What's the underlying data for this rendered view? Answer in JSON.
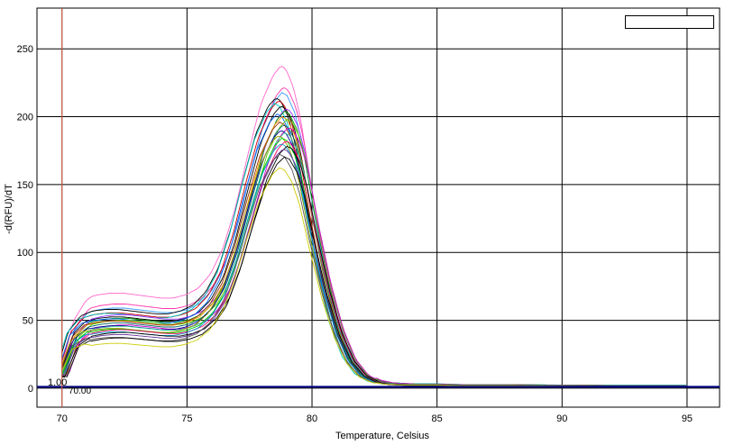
{
  "chart_data": {
    "type": "line",
    "title": "",
    "xlabel": "Temperature, Celsius",
    "ylabel": "-d(RFU)/dT",
    "xlim": [
      69,
      96.3
    ],
    "ylim": [
      -14,
      280
    ],
    "xticks": [
      70,
      75,
      80,
      85,
      90,
      95
    ],
    "yticks": [
      0,
      50,
      100,
      150,
      200,
      250
    ],
    "grid": true,
    "legend": "top-right",
    "threshold": {
      "value": 1.0,
      "label": "1.00",
      "color": "#000080"
    },
    "marker": {
      "x": 70.0,
      "label": "70.00",
      "color": "#e8654a"
    },
    "base_curve": {
      "x": [
        70,
        70.5,
        71,
        71.5,
        72,
        72.5,
        73,
        73.5,
        74,
        74.5,
        75,
        75.5,
        76,
        76.5,
        77,
        77.5,
        78,
        78.5,
        78.8,
        79,
        79.3,
        79.6,
        80,
        80.5,
        81,
        81.5,
        82,
        82.5,
        83,
        84,
        85,
        86,
        88,
        90,
        92,
        94,
        95,
        96
      ],
      "y": [
        10,
        38,
        47,
        49,
        50,
        50,
        49,
        48,
        47,
        47,
        49,
        53,
        62,
        78,
        105,
        140,
        172,
        192,
        198,
        196,
        185,
        165,
        125,
        80,
        45,
        22,
        10,
        5,
        3,
        2,
        2,
        1.5,
        1.5,
        1.2,
        1,
        1,
        1,
        1
      ]
    },
    "series": [
      {
        "color": "#ff66cc",
        "scale": 1.2,
        "shift": -0.05,
        "offset": 10
      },
      {
        "color": "#ff33aa",
        "scale": 1.12,
        "shift": 0.05,
        "offset": 6
      },
      {
        "color": "#3399ff",
        "scale": 1.1,
        "shift": 0.0,
        "offset": 4
      },
      {
        "color": "#000000",
        "scale": 1.08,
        "shift": -0.25,
        "offset": 4
      },
      {
        "color": "#cc0000",
        "scale": 1.07,
        "shift": -0.15,
        "offset": 2
      },
      {
        "color": "#00cccc",
        "scale": 1.06,
        "shift": -0.3,
        "offset": 2
      },
      {
        "color": "#000000",
        "scale": 1.05,
        "shift": -0.05,
        "offset": 0
      },
      {
        "color": "#9933ff",
        "scale": 1.04,
        "shift": 0.15,
        "offset": 2
      },
      {
        "color": "#009900",
        "scale": 1.03,
        "shift": 0.1,
        "offset": 0
      },
      {
        "color": "#0066ff",
        "scale": 1.02,
        "shift": -0.2,
        "offset": 0
      },
      {
        "color": "#ff9900",
        "scale": 1.01,
        "shift": 0.0,
        "offset": -1
      },
      {
        "color": "#66cc00",
        "scale": 1.0,
        "shift": 0.2,
        "offset": 0
      },
      {
        "color": "#993300",
        "scale": 0.99,
        "shift": -0.1,
        "offset": 0
      },
      {
        "color": "#006666",
        "scale": 0.98,
        "shift": 0.05,
        "offset": -1
      },
      {
        "color": "#cc00cc",
        "scale": 0.97,
        "shift": 0.25,
        "offset": -2
      },
      {
        "color": "#000099",
        "scale": 0.96,
        "shift": -0.05,
        "offset": -2
      },
      {
        "color": "#33cc99",
        "scale": 0.95,
        "shift": 0.1,
        "offset": -2
      },
      {
        "color": "#999900",
        "scale": 0.94,
        "shift": -0.15,
        "offset": -3
      },
      {
        "color": "#00cc00",
        "scale": 0.93,
        "shift": 0.0,
        "offset": -3
      },
      {
        "color": "#ff0066",
        "scale": 0.92,
        "shift": 0.15,
        "offset": -3
      },
      {
        "color": "#0099cc",
        "scale": 0.91,
        "shift": -0.05,
        "offset": -4
      },
      {
        "color": "#000000",
        "scale": 0.9,
        "shift": 0.2,
        "offset": -4
      },
      {
        "color": "#663399",
        "scale": 0.89,
        "shift": 0.05,
        "offset": -5
      },
      {
        "color": "#555555",
        "scale": 0.87,
        "shift": -0.1,
        "offset": -6
      },
      {
        "color": "#000000",
        "scale": 0.86,
        "shift": 0.1,
        "offset": -6
      },
      {
        "color": "#cccc00",
        "scale": 0.82,
        "shift": -0.1,
        "offset": -8
      }
    ]
  }
}
